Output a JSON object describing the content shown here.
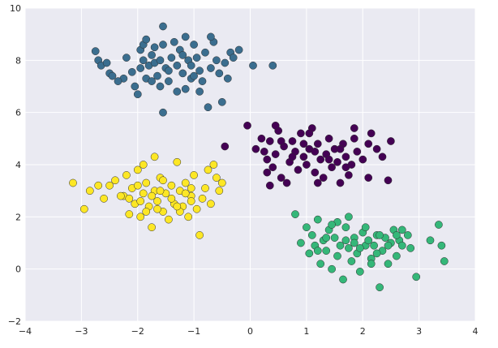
{
  "chart_data": {
    "type": "scatter",
    "title": "",
    "xlabel": "",
    "ylabel": "",
    "xlim": [
      -4,
      4
    ],
    "ylim": [
      -2,
      10
    ],
    "xticks": [
      -4,
      -3,
      -2,
      -1,
      0,
      1,
      2,
      3,
      4
    ],
    "yticks": [
      -2,
      0,
      2,
      4,
      6,
      8,
      10
    ],
    "xtick_labels": [
      "−4",
      "−3",
      "−2",
      "−1",
      "0",
      "1",
      "2",
      "3",
      "4"
    ],
    "ytick_labels": [
      "−2",
      "0",
      "2",
      "4",
      "6",
      "8",
      "10"
    ],
    "grid": true,
    "background": "#EAEAF2",
    "grid_color": "#FFFFFF",
    "legend": "none",
    "series": [
      {
        "color": "#3B6E8F",
        "points": [
          [
            -1.55,
            9.3
          ],
          [
            -1.15,
            8.9
          ],
          [
            -2.75,
            8.35
          ],
          [
            -2.7,
            8.0
          ],
          [
            -2.65,
            7.8
          ],
          [
            -2.5,
            7.5
          ],
          [
            -2.45,
            7.4
          ],
          [
            -2.25,
            7.3
          ],
          [
            -2.2,
            8.1
          ],
          [
            -2.1,
            7.55
          ],
          [
            -2.05,
            7.0
          ],
          [
            -2.0,
            6.7
          ],
          [
            -1.95,
            8.4
          ],
          [
            -1.9,
            8.6
          ],
          [
            -1.85,
            7.3
          ],
          [
            -1.8,
            7.8
          ],
          [
            -1.75,
            8.2
          ],
          [
            -1.7,
            7.9
          ],
          [
            -1.65,
            7.4
          ],
          [
            -1.6,
            7.0
          ],
          [
            -1.55,
            8.6
          ],
          [
            -1.5,
            7.7
          ],
          [
            -1.45,
            7.2
          ],
          [
            -1.4,
            8.1
          ],
          [
            -1.35,
            8.7
          ],
          [
            -1.3,
            7.8
          ],
          [
            -1.25,
            8.4
          ],
          [
            -1.2,
            7.5
          ],
          [
            -1.15,
            6.9
          ],
          [
            -1.1,
            8.0
          ],
          [
            -1.05,
            7.3
          ],
          [
            -1.0,
            8.6
          ],
          [
            -0.95,
            8.1
          ],
          [
            -0.9,
            7.6
          ],
          [
            -0.85,
            7.2
          ],
          [
            -0.8,
            8.3
          ],
          [
            -0.75,
            6.2
          ],
          [
            -0.7,
            7.7
          ],
          [
            -0.65,
            8.7
          ],
          [
            -0.6,
            8.0
          ],
          [
            -0.55,
            7.5
          ],
          [
            -0.5,
            6.4
          ],
          [
            -0.45,
            7.9
          ],
          [
            -0.4,
            7.3
          ],
          [
            -0.35,
            8.3
          ],
          [
            -0.3,
            8.1
          ],
          [
            -0.2,
            8.4
          ],
          [
            -1.55,
            6.0
          ],
          [
            -1.95,
            7.7
          ],
          [
            -1.75,
            7.2
          ],
          [
            -1.3,
            6.8
          ],
          [
            -1.05,
            7.8
          ],
          [
            -2.35,
            7.2
          ],
          [
            -1.6,
            8.0
          ],
          [
            -1.2,
            8.2
          ],
          [
            0.05,
            7.8
          ],
          [
            0.4,
            7.8
          ],
          [
            -1.9,
            8.0
          ],
          [
            -1.45,
            7.6
          ],
          [
            -0.9,
            6.8
          ],
          [
            -2.55,
            7.9
          ],
          [
            -1.7,
            8.5
          ],
          [
            -1.0,
            7.4
          ],
          [
            -1.85,
            8.8
          ],
          [
            -0.7,
            8.9
          ]
        ]
      },
      {
        "color": "#440154",
        "points": [
          [
            -0.45,
            4.7
          ],
          [
            -0.05,
            5.5
          ],
          [
            0.1,
            4.6
          ],
          [
            0.2,
            5.0
          ],
          [
            0.25,
            4.5
          ],
          [
            0.3,
            4.2
          ],
          [
            0.35,
            4.9
          ],
          [
            0.4,
            3.9
          ],
          [
            0.45,
            4.4
          ],
          [
            0.5,
            5.3
          ],
          [
            0.55,
            3.5
          ],
          [
            0.6,
            4.7
          ],
          [
            0.65,
            3.3
          ],
          [
            0.7,
            4.1
          ],
          [
            0.75,
            4.9
          ],
          [
            0.8,
            4.5
          ],
          [
            0.85,
            3.8
          ],
          [
            0.9,
            5.2
          ],
          [
            0.95,
            4.3
          ],
          [
            1.0,
            4.0
          ],
          [
            1.05,
            4.6
          ],
          [
            1.1,
            5.4
          ],
          [
            1.15,
            3.7
          ],
          [
            1.2,
            4.8
          ],
          [
            1.25,
            4.2
          ],
          [
            1.3,
            3.5
          ],
          [
            1.35,
            4.4
          ],
          [
            1.4,
            5.0
          ],
          [
            1.45,
            3.9
          ],
          [
            1.5,
            4.6
          ],
          [
            1.55,
            4.1
          ],
          [
            1.6,
            3.3
          ],
          [
            1.65,
            4.8
          ],
          [
            1.7,
            4.3
          ],
          [
            1.75,
            3.6
          ],
          [
            1.8,
            4.0
          ],
          [
            1.85,
            5.0
          ],
          [
            1.9,
            4.5
          ],
          [
            2.0,
            4.2
          ],
          [
            2.1,
            4.8
          ],
          [
            2.15,
            5.2
          ],
          [
            2.25,
            4.6
          ],
          [
            2.35,
            4.3
          ],
          [
            2.45,
            3.4
          ],
          [
            2.5,
            4.9
          ],
          [
            2.1,
            3.5
          ],
          [
            1.2,
            3.3
          ],
          [
            0.35,
            3.2
          ],
          [
            0.55,
            4.9
          ],
          [
            0.95,
            4.8
          ],
          [
            1.15,
            4.5
          ],
          [
            1.4,
            4.2
          ],
          [
            1.7,
            3.9
          ],
          [
            1.85,
            5.4
          ],
          [
            0.75,
            4.3
          ],
          [
            0.3,
            3.7
          ],
          [
            1.05,
            5.2
          ],
          [
            1.6,
            4.6
          ],
          [
            0.45,
            5.5
          ]
        ]
      },
      {
        "color": "#FDE725",
        "points": [
          [
            -3.15,
            3.3
          ],
          [
            -2.95,
            2.3
          ],
          [
            -2.85,
            3.0
          ],
          [
            -2.7,
            3.2
          ],
          [
            -2.6,
            2.7
          ],
          [
            -2.4,
            3.4
          ],
          [
            -2.25,
            2.8
          ],
          [
            -2.2,
            3.6
          ],
          [
            -2.15,
            2.1
          ],
          [
            -2.1,
            3.1
          ],
          [
            -2.05,
            2.5
          ],
          [
            -2.0,
            3.8
          ],
          [
            -1.95,
            2.0
          ],
          [
            -1.9,
            2.9
          ],
          [
            -1.85,
            3.3
          ],
          [
            -1.8,
            2.4
          ],
          [
            -1.75,
            1.6
          ],
          [
            -1.7,
            3.0
          ],
          [
            -1.65,
            2.6
          ],
          [
            -1.6,
            3.5
          ],
          [
            -1.55,
            2.2
          ],
          [
            -1.5,
            2.9
          ],
          [
            -1.45,
            1.9
          ],
          [
            -1.4,
            3.2
          ],
          [
            -1.35,
            2.5
          ],
          [
            -1.3,
            4.1
          ],
          [
            -1.25,
            3.0
          ],
          [
            -1.2,
            2.4
          ],
          [
            -1.15,
            3.3
          ],
          [
            -1.1,
            2.0
          ],
          [
            -1.05,
            2.8
          ],
          [
            -1.0,
            3.6
          ],
          [
            -0.95,
            2.3
          ],
          [
            -0.9,
            1.3
          ],
          [
            -0.85,
            2.7
          ],
          [
            -0.8,
            3.1
          ],
          [
            -0.7,
            2.5
          ],
          [
            -0.65,
            4.0
          ],
          [
            -0.6,
            3.5
          ],
          [
            -0.55,
            3.0
          ],
          [
            -0.5,
            3.3
          ],
          [
            -1.7,
            4.3
          ],
          [
            -1.9,
            4.0
          ],
          [
            -2.3,
            2.8
          ],
          [
            -1.6,
            3.0
          ],
          [
            -1.25,
            2.2
          ],
          [
            -1.05,
            3.1
          ],
          [
            -1.85,
            2.2
          ],
          [
            -1.4,
            2.7
          ],
          [
            -2.0,
            3.2
          ],
          [
            -1.75,
            2.8
          ],
          [
            -1.15,
            2.9
          ],
          [
            -1.55,
            3.4
          ],
          [
            -1.95,
            2.6
          ],
          [
            -2.5,
            3.2
          ],
          [
            -0.75,
            3.8
          ],
          [
            -1.3,
            2.4
          ],
          [
            -2.15,
            2.7
          ],
          [
            -1.65,
            2.3
          ],
          [
            -1.05,
            2.6
          ]
        ]
      },
      {
        "color": "#35B779",
        "points": [
          [
            0.8,
            2.1
          ],
          [
            0.9,
            1.0
          ],
          [
            1.0,
            1.6
          ],
          [
            1.05,
            0.6
          ],
          [
            1.1,
            1.3
          ],
          [
            1.15,
            0.9
          ],
          [
            1.2,
            1.9
          ],
          [
            1.25,
            0.2
          ],
          [
            1.3,
            1.1
          ],
          [
            1.35,
            0.7
          ],
          [
            1.4,
            1.5
          ],
          [
            1.45,
            0.0
          ],
          [
            1.5,
            1.2
          ],
          [
            1.55,
            0.5
          ],
          [
            1.6,
            0.9
          ],
          [
            1.65,
            -0.4
          ],
          [
            1.7,
            1.6
          ],
          [
            1.75,
            0.8
          ],
          [
            1.8,
            0.3
          ],
          [
            1.85,
            1.2
          ],
          [
            1.9,
            0.6
          ],
          [
            1.95,
            -0.1
          ],
          [
            2.0,
            1.4
          ],
          [
            2.05,
            0.9
          ],
          [
            2.1,
            1.1
          ],
          [
            2.15,
            0.4
          ],
          [
            2.2,
            0.9
          ],
          [
            2.25,
            1.3
          ],
          [
            2.3,
            -0.7
          ],
          [
            2.35,
            0.7
          ],
          [
            2.4,
            1.2
          ],
          [
            2.45,
            0.2
          ],
          [
            2.5,
            1.0
          ],
          [
            2.55,
            1.5
          ],
          [
            2.6,
            0.5
          ],
          [
            2.65,
            1.1
          ],
          [
            2.7,
            0.9
          ],
          [
            2.8,
            1.3
          ],
          [
            2.95,
            -0.3
          ],
          [
            3.2,
            1.1
          ],
          [
            3.35,
            1.7
          ],
          [
            3.4,
            0.9
          ],
          [
            3.45,
            0.3
          ],
          [
            1.75,
            2.0
          ],
          [
            2.05,
            1.6
          ],
          [
            2.3,
            1.3
          ],
          [
            1.55,
            1.8
          ],
          [
            2.7,
            1.5
          ],
          [
            1.35,
            1.2
          ],
          [
            1.95,
            0.8
          ],
          [
            2.15,
            0.2
          ],
          [
            1.7,
            1.1
          ],
          [
            2.45,
            0.9
          ],
          [
            1.2,
            0.7
          ],
          [
            2.85,
            0.8
          ],
          [
            1.45,
            1.7
          ],
          [
            2.25,
            0.6
          ],
          [
            1.85,
            1.0
          ],
          [
            2.6,
            1.3
          ]
        ]
      }
    ]
  }
}
